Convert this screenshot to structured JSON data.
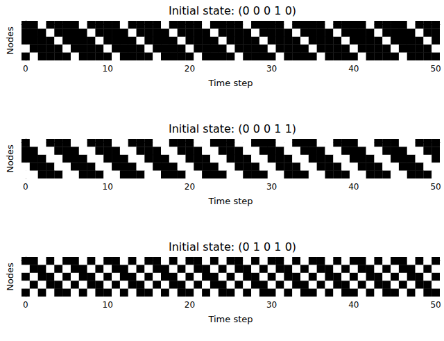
{
  "chart_data": [
    {
      "type": "heatmap",
      "title": "Initial state: (0 0 0 1 0)",
      "x_label": "Time step",
      "y_label": "Nodes",
      "xlim": [
        -0.5,
        50.5
      ],
      "xticks": [
        0,
        10,
        20,
        30,
        40,
        50
      ],
      "ylim": [
        -0.5,
        4.5
      ],
      "tick_labels": "x",
      "colors": [
        "#000000",
        "#ffffff"
      ],
      "cells": [
        [
          0,
          0,
          1,
          0,
          0,
          0,
          0,
          1,
          0,
          0,
          0,
          0,
          1,
          0,
          0,
          0,
          0,
          1,
          0,
          0,
          0,
          0,
          1,
          0,
          0,
          0,
          0,
          1,
          0,
          0,
          0,
          0,
          1,
          0,
          0,
          0,
          0,
          1,
          0,
          0,
          0,
          0,
          1,
          0,
          0,
          0,
          0,
          1,
          0,
          0,
          0
        ],
        [
          0,
          0,
          0,
          1,
          0,
          0,
          0,
          0,
          1,
          0,
          0,
          0,
          0,
          1,
          0,
          0,
          0,
          0,
          1,
          0,
          0,
          0,
          0,
          1,
          0,
          0,
          0,
          0,
          1,
          0,
          0,
          0,
          0,
          1,
          0,
          0,
          0,
          0,
          1,
          0,
          0,
          0,
          0,
          1,
          0,
          0,
          0,
          0,
          1,
          0,
          0
        ],
        [
          0,
          0,
          0,
          0,
          1,
          0,
          0,
          0,
          0,
          1,
          0,
          0,
          0,
          0,
          1,
          0,
          0,
          0,
          0,
          1,
          0,
          0,
          0,
          0,
          1,
          0,
          0,
          0,
          0,
          1,
          0,
          0,
          0,
          0,
          1,
          0,
          0,
          0,
          0,
          1,
          0,
          0,
          0,
          0,
          1,
          0,
          0,
          0,
          0,
          1,
          0
        ],
        [
          1,
          0,
          0,
          0,
          0,
          1,
          0,
          0,
          0,
          0,
          1,
          0,
          0,
          0,
          0,
          1,
          0,
          0,
          0,
          0,
          1,
          0,
          0,
          0,
          0,
          1,
          0,
          0,
          0,
          0,
          1,
          0,
          0,
          0,
          0,
          1,
          0,
          0,
          0,
          0,
          1,
          0,
          0,
          0,
          0,
          1,
          0,
          0,
          0,
          0,
          1
        ],
        [
          0,
          1,
          0,
          0,
          0,
          0,
          1,
          0,
          0,
          0,
          0,
          1,
          0,
          0,
          0,
          0,
          1,
          0,
          0,
          0,
          0,
          1,
          0,
          0,
          0,
          0,
          1,
          0,
          0,
          0,
          0,
          1,
          0,
          0,
          0,
          0,
          1,
          0,
          0,
          0,
          0,
          1,
          0,
          0,
          0,
          0,
          1,
          0,
          0,
          0,
          0
        ]
      ]
    },
    {
      "type": "heatmap",
      "title": "Initial state: (0 0 0 1 1)",
      "x_label": "Time step",
      "y_label": "Nodes",
      "xlim": [
        -0.5,
        50.5
      ],
      "xticks": [
        0,
        10,
        20,
        30,
        40,
        50
      ],
      "ylim": [
        -0.5,
        4.5
      ],
      "tick_labels": "x",
      "colors": [
        "#000000",
        "#ffffff"
      ],
      "cells": [
        [
          0,
          1,
          1,
          0,
          0,
          0,
          1,
          1,
          0,
          0,
          0,
          1,
          1,
          0,
          0,
          0,
          1,
          1,
          0,
          0,
          0,
          1,
          1,
          0,
          0,
          0,
          1,
          1,
          0,
          0,
          0,
          1,
          1,
          0,
          0,
          0,
          1,
          1,
          0,
          0,
          0,
          1,
          1,
          0,
          0,
          0,
          1,
          1,
          0,
          0,
          0
        ],
        [
          0,
          0,
          1,
          1,
          0,
          0,
          0,
          1,
          1,
          0,
          0,
          0,
          1,
          1,
          0,
          0,
          0,
          1,
          1,
          0,
          0,
          0,
          1,
          1,
          0,
          0,
          0,
          1,
          1,
          0,
          0,
          0,
          1,
          1,
          0,
          0,
          0,
          1,
          1,
          0,
          0,
          0,
          1,
          1,
          0,
          0,
          0,
          1,
          1,
          0,
          0
        ],
        [
          0,
          0,
          0,
          1,
          1,
          0,
          0,
          0,
          1,
          1,
          0,
          0,
          0,
          1,
          1,
          0,
          0,
          0,
          1,
          1,
          0,
          0,
          0,
          1,
          1,
          0,
          0,
          0,
          1,
          1,
          0,
          0,
          0,
          1,
          1,
          0,
          0,
          0,
          1,
          1,
          0,
          0,
          0,
          1,
          1,
          0,
          0,
          0,
          1,
          1,
          0
        ],
        [
          1,
          0,
          0,
          0,
          1,
          1,
          0,
          0,
          0,
          1,
          1,
          0,
          0,
          0,
          1,
          1,
          0,
          0,
          0,
          1,
          1,
          0,
          0,
          0,
          1,
          1,
          0,
          0,
          0,
          1,
          1,
          0,
          0,
          0,
          1,
          1,
          0,
          0,
          0,
          1,
          1,
          0,
          0,
          0,
          1,
          1,
          0,
          0,
          0,
          1,
          1
        ],
        [
          1,
          1,
          0,
          0,
          0,
          1,
          1,
          0,
          0,
          0,
          1,
          1,
          0,
          0,
          0,
          1,
          1,
          0,
          0,
          0,
          1,
          1,
          0,
          0,
          0,
          1,
          1,
          0,
          0,
          0,
          1,
          1,
          0,
          0,
          0,
          1,
          1,
          0,
          0,
          0,
          1,
          1,
          0,
          0,
          0,
          1,
          1,
          0,
          0,
          0,
          1
        ]
      ]
    },
    {
      "type": "heatmap",
      "title": "Initial state: (0 1 0 1 0)",
      "x_label": "Time step",
      "y_label": "Nodes",
      "xlim": [
        -0.5,
        50.5
      ],
      "xticks": [
        0,
        10,
        20,
        30,
        40,
        50
      ],
      "ylim": [
        -0.5,
        4.5
      ],
      "tick_labels": "x",
      "colors": [
        "#000000",
        "#ffffff"
      ],
      "cells": [
        [
          0,
          0,
          1,
          0,
          1,
          0,
          0,
          1,
          0,
          1,
          0,
          0,
          1,
          0,
          1,
          0,
          0,
          1,
          0,
          1,
          0,
          0,
          1,
          0,
          1,
          0,
          0,
          1,
          0,
          1,
          0,
          0,
          1,
          0,
          1,
          0,
          0,
          1,
          0,
          1,
          0,
          0,
          1,
          0,
          1,
          0,
          0,
          1,
          0,
          1,
          0
        ],
        [
          1,
          0,
          0,
          1,
          0,
          1,
          0,
          0,
          1,
          0,
          1,
          0,
          0,
          1,
          0,
          1,
          0,
          0,
          1,
          0,
          1,
          0,
          0,
          1,
          0,
          1,
          0,
          0,
          1,
          0,
          1,
          0,
          0,
          1,
          0,
          1,
          0,
          0,
          1,
          0,
          1,
          0,
          0,
          1,
          0,
          1,
          0,
          0,
          1,
          0,
          1
        ],
        [
          0,
          1,
          0,
          0,
          1,
          0,
          1,
          0,
          0,
          1,
          0,
          1,
          0,
          0,
          1,
          0,
          1,
          0,
          0,
          1,
          0,
          1,
          0,
          0,
          1,
          0,
          1,
          0,
          0,
          1,
          0,
          1,
          0,
          0,
          1,
          0,
          1,
          0,
          0,
          1,
          0,
          1,
          0,
          0,
          1,
          0,
          1,
          0,
          0,
          1,
          0
        ],
        [
          1,
          0,
          1,
          0,
          0,
          1,
          0,
          1,
          0,
          0,
          1,
          0,
          1,
          0,
          0,
          1,
          0,
          1,
          0,
          0,
          1,
          0,
          1,
          0,
          0,
          1,
          0,
          1,
          0,
          0,
          1,
          0,
          1,
          0,
          0,
          1,
          0,
          1,
          0,
          0,
          1,
          0,
          1,
          0,
          0,
          1,
          0,
          1,
          0,
          0,
          1
        ],
        [
          0,
          1,
          0,
          1,
          0,
          0,
          1,
          0,
          1,
          0,
          0,
          1,
          0,
          1,
          0,
          0,
          1,
          0,
          1,
          0,
          0,
          1,
          0,
          1,
          0,
          0,
          1,
          0,
          1,
          0,
          0,
          1,
          0,
          1,
          0,
          0,
          1,
          0,
          1,
          0,
          0,
          1,
          0,
          1,
          0,
          0,
          1,
          0,
          1,
          0,
          0
        ]
      ]
    }
  ]
}
